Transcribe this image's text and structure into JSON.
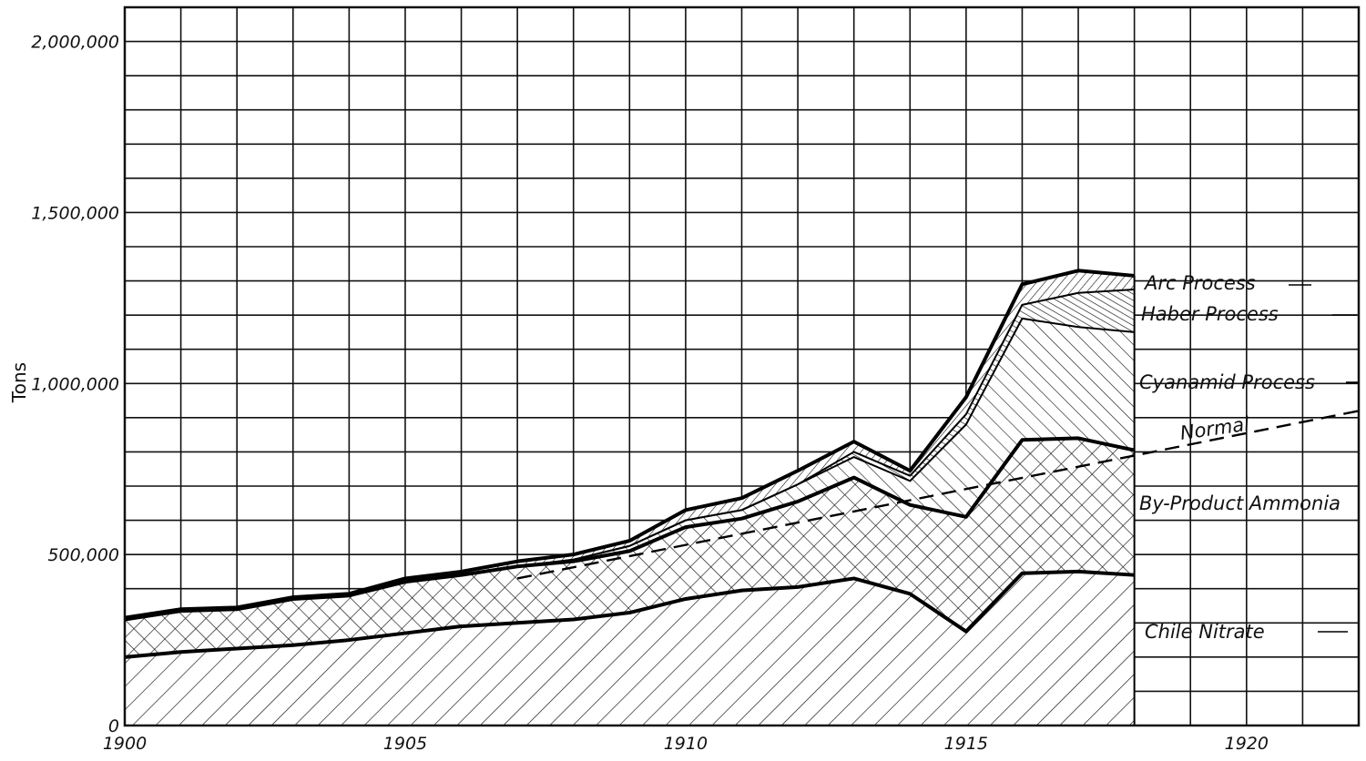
{
  "chart_data": {
    "type": "area",
    "stacked": true,
    "title": "",
    "xlabel": "",
    "ylabel": "Tons",
    "xlim": [
      1900,
      1922
    ],
    "ylim": [
      0,
      2100000
    ],
    "x_ticks": [
      {
        "value": 1900,
        "label": "1900"
      },
      {
        "value": 1905,
        "label": "1905"
      },
      {
        "value": 1910,
        "label": "1910"
      },
      {
        "value": 1915,
        "label": "1915"
      },
      {
        "value": 1920,
        "label": "1920"
      }
    ],
    "y_ticks": [
      {
        "value": 0,
        "label": "0"
      },
      {
        "value": 500000,
        "label": "500,000"
      },
      {
        "value": 1000000,
        "label": "1,000,000"
      },
      {
        "value": 1500000,
        "label": "1,500,000"
      },
      {
        "value": 2000000,
        "label": "2,000,000"
      }
    ],
    "grid": true,
    "x": [
      1900,
      1901,
      1902,
      1903,
      1904,
      1905,
      1906,
      1907,
      1908,
      1909,
      1910,
      1911,
      1912,
      1913,
      1914,
      1915,
      1916,
      1917,
      1918
    ],
    "series": [
      {
        "name": "Chile Nitrate",
        "pattern": "diagonal",
        "values": [
          200000,
          215000,
          225000,
          235000,
          250000,
          270000,
          290000,
          300000,
          310000,
          330000,
          370000,
          395000,
          405000,
          430000,
          385000,
          275000,
          445000,
          450000,
          440000
        ]
      },
      {
        "name": "By-Product Ammonia",
        "pattern": "crosshatch",
        "values": [
          110000,
          120000,
          115000,
          135000,
          130000,
          150000,
          150000,
          165000,
          170000,
          180000,
          210000,
          210000,
          250000,
          295000,
          260000,
          335000,
          390000,
          390000,
          365000
        ]
      },
      {
        "name": "Cyanamid Process",
        "pattern": "backslash",
        "values": [
          0,
          0,
          0,
          0,
          0,
          0,
          0,
          0,
          5000,
          15000,
          20000,
          25000,
          50000,
          60000,
          70000,
          270000,
          355000,
          325000,
          345000
        ]
      },
      {
        "name": "Haber Process",
        "pattern": "vertical-dense",
        "values": [
          0,
          0,
          0,
          0,
          0,
          0,
          0,
          0,
          0,
          0,
          0,
          0,
          0,
          15000,
          15000,
          30000,
          40000,
          100000,
          125000
        ]
      },
      {
        "name": "Arc Process",
        "pattern": "diagonal-dense",
        "values": [
          5000,
          5000,
          5000,
          5000,
          5000,
          10000,
          10000,
          15000,
          15000,
          15000,
          30000,
          35000,
          40000,
          30000,
          15000,
          50000,
          60000,
          65000,
          40000
        ]
      }
    ],
    "reference_lines": [
      {
        "name": "Normal",
        "style": "dashed",
        "x": [
          1907,
          1922
        ],
        "y": [
          430000,
          920000
        ]
      }
    ],
    "legend": "inline-right"
  }
}
